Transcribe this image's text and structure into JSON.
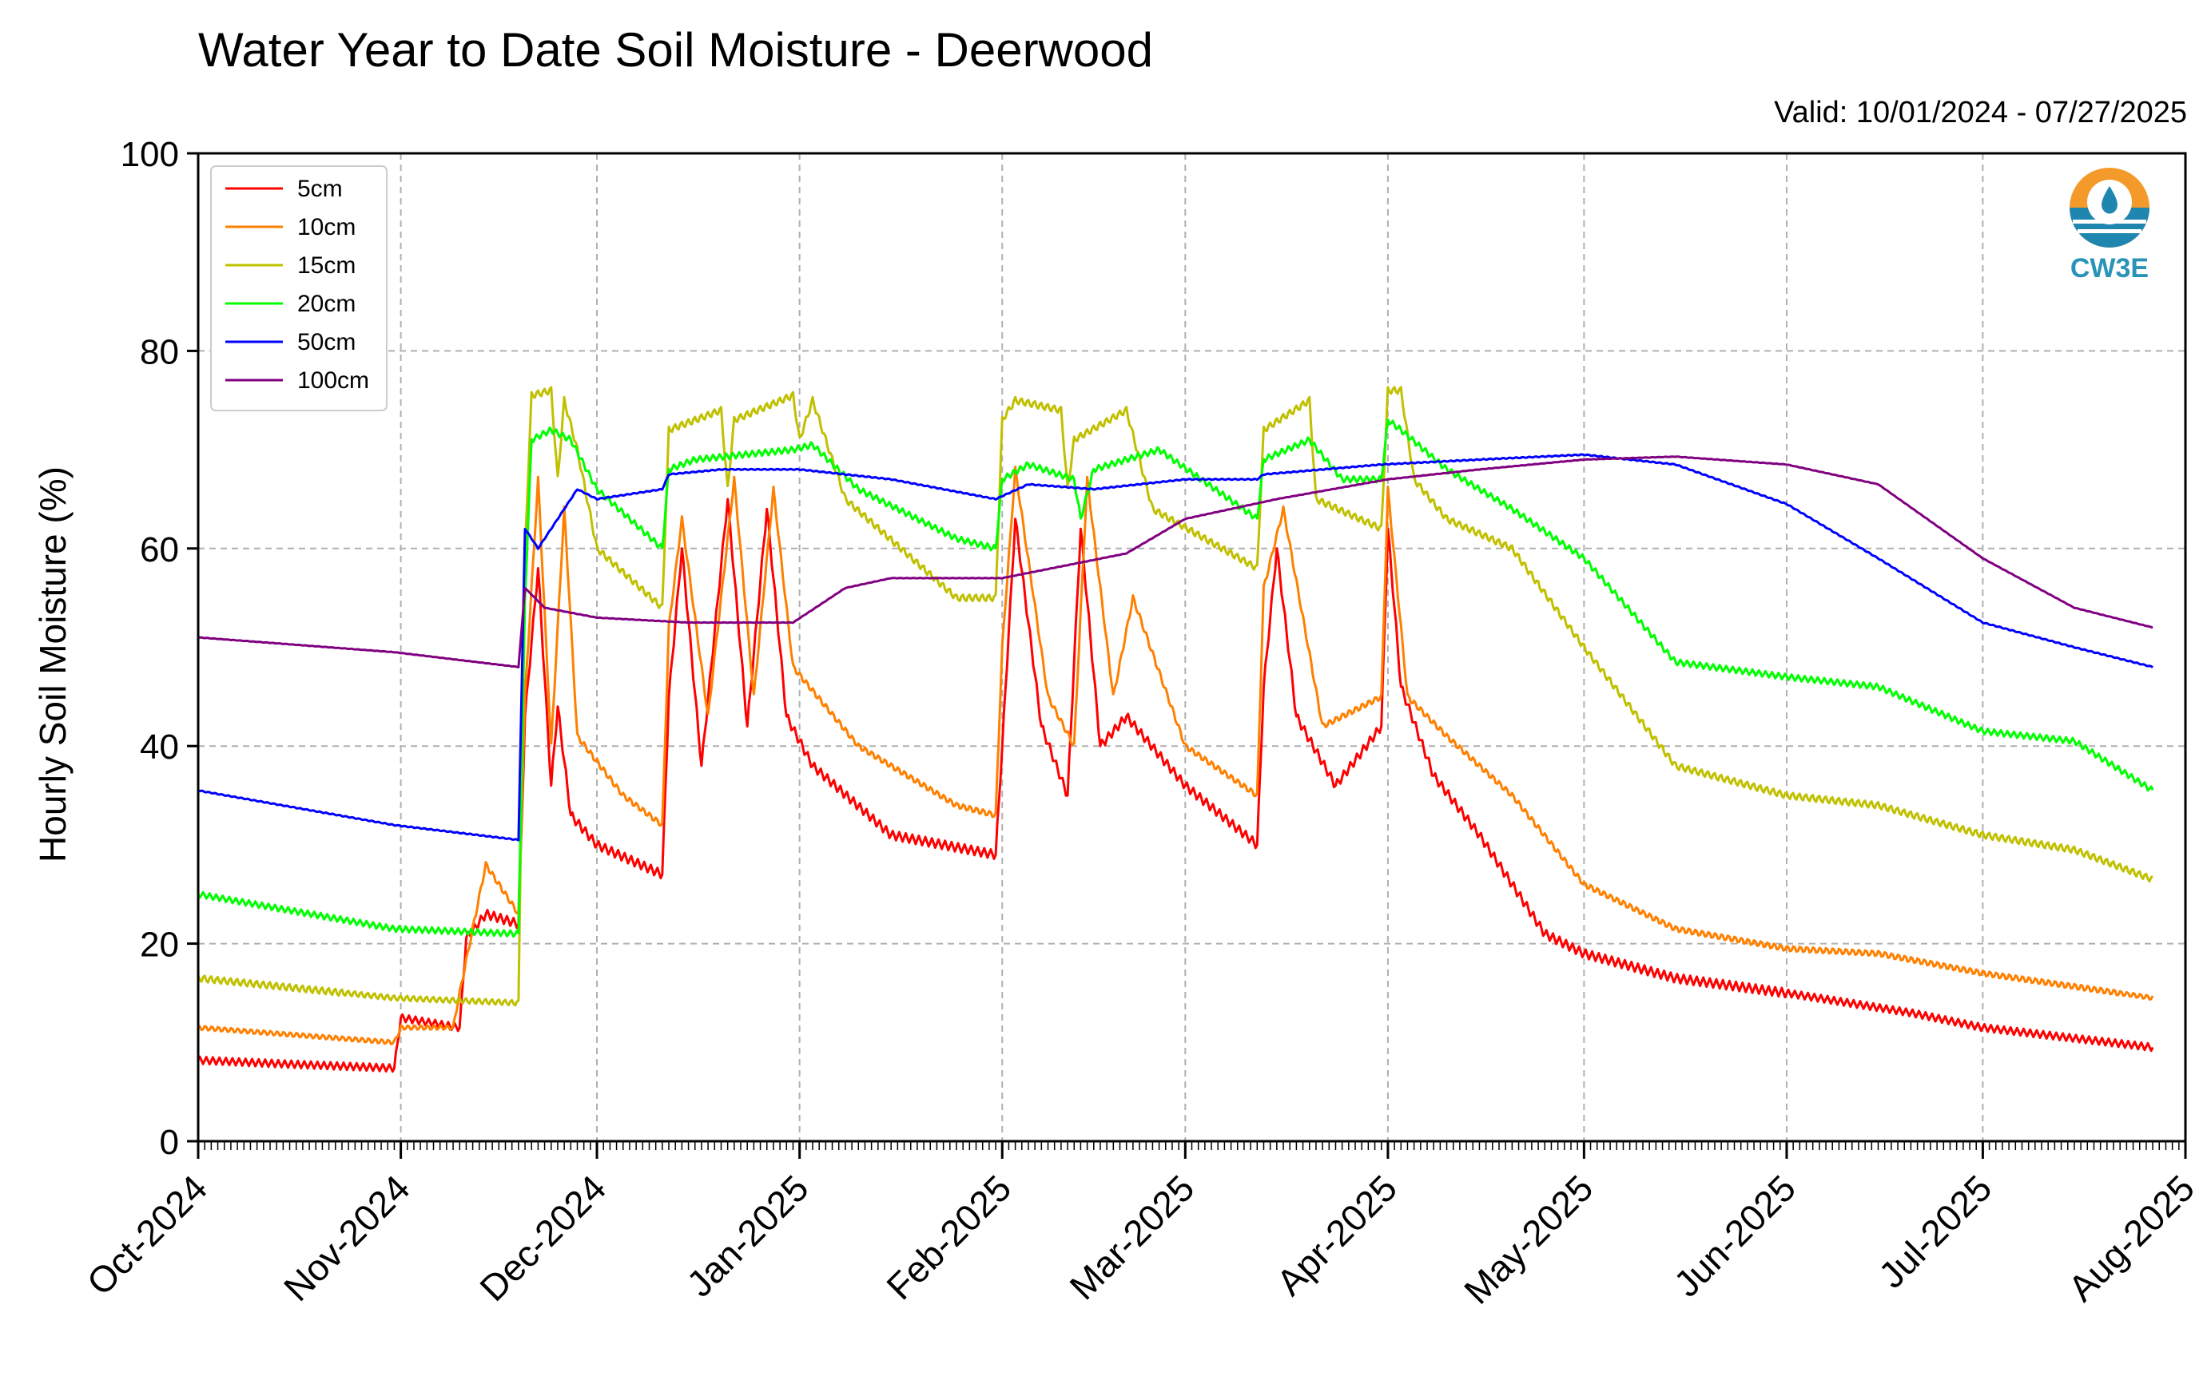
{
  "chart_data": {
    "type": "line",
    "title": "Water Year to Date Soil Moisture - Deerwood",
    "subtitle": "Valid: 10/01/2024 - 07/27/2025",
    "xlabel": "",
    "ylabel": "Hourly Soil Moisture (%)",
    "ylim": [
      0,
      100
    ],
    "yticks": [
      0,
      20,
      40,
      60,
      80,
      100
    ],
    "xlim": [
      "2024-10-01",
      "2025-08-01"
    ],
    "xticks": [
      "Oct-2024",
      "Nov-2024",
      "Dec-2024",
      "Jan-2025",
      "Feb-2025",
      "Mar-2025",
      "Apr-2025",
      "May-2025",
      "Jun-2025",
      "Jul-2025",
      "Aug-2025"
    ],
    "grid": true,
    "legend_position": "upper-left",
    "series": [
      {
        "name": "5cm",
        "color": "#ff0000",
        "points": [
          [
            "2024-10-01",
            8.2
          ],
          [
            "2024-10-15",
            7.8
          ],
          [
            "2024-10-31",
            7.4
          ],
          [
            "2024-11-01",
            12.5
          ],
          [
            "2024-11-10",
            11.5
          ],
          [
            "2024-11-11",
            20.5
          ],
          [
            "2024-11-14",
            23
          ],
          [
            "2024-11-19",
            22
          ],
          [
            "2024-11-20",
            43
          ],
          [
            "2024-11-22",
            58
          ],
          [
            "2024-11-24",
            36
          ],
          [
            "2024-11-25",
            44
          ],
          [
            "2024-11-27",
            33
          ],
          [
            "2024-12-01",
            30
          ],
          [
            "2024-12-11",
            27
          ],
          [
            "2024-12-12",
            45
          ],
          [
            "2024-12-14",
            60
          ],
          [
            "2024-12-17",
            38
          ],
          [
            "2024-12-21",
            65
          ],
          [
            "2024-12-24",
            42
          ],
          [
            "2024-12-27",
            64
          ],
          [
            "2024-12-30",
            43
          ],
          [
            "2025-01-03",
            38
          ],
          [
            "2025-01-15",
            31
          ],
          [
            "2025-01-31",
            29
          ],
          [
            "2025-02-01",
            40
          ],
          [
            "2025-02-03",
            63
          ],
          [
            "2025-02-07",
            42
          ],
          [
            "2025-02-11",
            35
          ],
          [
            "2025-02-13",
            62
          ],
          [
            "2025-02-16",
            40
          ],
          [
            "2025-02-20",
            43
          ],
          [
            "2025-03-01",
            36
          ],
          [
            "2025-03-12",
            30
          ],
          [
            "2025-03-13",
            46
          ],
          [
            "2025-03-15",
            60
          ],
          [
            "2025-03-18",
            43
          ],
          [
            "2025-03-24",
            36
          ],
          [
            "2025-03-31",
            42
          ],
          [
            "2025-04-01",
            62
          ],
          [
            "2025-04-03",
            46
          ],
          [
            "2025-04-08",
            37
          ],
          [
            "2025-04-15",
            31
          ],
          [
            "2025-04-25",
            21
          ],
          [
            "2025-05-01",
            19
          ],
          [
            "2025-05-15",
            16.5
          ],
          [
            "2025-06-01",
            15
          ],
          [
            "2025-06-20",
            13
          ],
          [
            "2025-07-01",
            11.5
          ],
          [
            "2025-07-27",
            9.5
          ]
        ]
      },
      {
        "name": "10cm",
        "color": "#ff8000",
        "points": [
          [
            "2024-10-01",
            11.5
          ],
          [
            "2024-10-31",
            10
          ],
          [
            "2024-11-01",
            11.5
          ],
          [
            "2024-11-09",
            11.5
          ],
          [
            "2024-11-10",
            15
          ],
          [
            "2024-11-14",
            28
          ],
          [
            "2024-11-19",
            23
          ],
          [
            "2024-11-20",
            45
          ],
          [
            "2024-11-22",
            67
          ],
          [
            "2024-11-24",
            40
          ],
          [
            "2024-11-26",
            64
          ],
          [
            "2024-11-28",
            41
          ],
          [
            "2024-12-05",
            35
          ],
          [
            "2024-12-11",
            32
          ],
          [
            "2024-12-12",
            52
          ],
          [
            "2024-12-14",
            63
          ],
          [
            "2024-12-18",
            43
          ],
          [
            "2024-12-22",
            67
          ],
          [
            "2024-12-25",
            45
          ],
          [
            "2024-12-28",
            66
          ],
          [
            "2024-12-31",
            48
          ],
          [
            "2025-01-10",
            40
          ],
          [
            "2025-01-25",
            34
          ],
          [
            "2025-01-31",
            33
          ],
          [
            "2025-02-01",
            50
          ],
          [
            "2025-02-03",
            68
          ],
          [
            "2025-02-08",
            45
          ],
          [
            "2025-02-12",
            40
          ],
          [
            "2025-02-14",
            67
          ],
          [
            "2025-02-18",
            45
          ],
          [
            "2025-02-21",
            55
          ],
          [
            "2025-03-01",
            40
          ],
          [
            "2025-03-12",
            35
          ],
          [
            "2025-03-13",
            56
          ],
          [
            "2025-03-16",
            64
          ],
          [
            "2025-03-22",
            42
          ],
          [
            "2025-03-31",
            45
          ],
          [
            "2025-04-01",
            66
          ],
          [
            "2025-04-04",
            45
          ],
          [
            "2025-04-10",
            41
          ],
          [
            "2025-04-20",
            35
          ],
          [
            "2025-05-01",
            26
          ],
          [
            "2025-05-15",
            21.5
          ],
          [
            "2025-06-01",
            19.5
          ],
          [
            "2025-06-15",
            19
          ],
          [
            "2025-07-01",
            17
          ],
          [
            "2025-07-27",
            14.5
          ]
        ]
      },
      {
        "name": "15cm",
        "color": "#c0c000",
        "points": [
          [
            "2024-10-01",
            16.5
          ],
          [
            "2024-10-31",
            14.5
          ],
          [
            "2024-11-19",
            14
          ],
          [
            "2024-11-20",
            60
          ],
          [
            "2024-11-21",
            75.5
          ],
          [
            "2024-11-24",
            76
          ],
          [
            "2024-11-25",
            67
          ],
          [
            "2024-11-26",
            75
          ],
          [
            "2024-11-28",
            70
          ],
          [
            "2024-12-01",
            60
          ],
          [
            "2024-12-11",
            54
          ],
          [
            "2024-12-12",
            72
          ],
          [
            "2024-12-20",
            74
          ],
          [
            "2024-12-21",
            66
          ],
          [
            "2024-12-22",
            73
          ],
          [
            "2024-12-31",
            75.5
          ],
          [
            "2025-01-01",
            71
          ],
          [
            "2025-01-03",
            75
          ],
          [
            "2025-01-08",
            65
          ],
          [
            "2025-01-25",
            55
          ],
          [
            "2025-01-31",
            55
          ],
          [
            "2025-02-01",
            73
          ],
          [
            "2025-02-03",
            75
          ],
          [
            "2025-02-10",
            74
          ],
          [
            "2025-02-11",
            66
          ],
          [
            "2025-02-12",
            71
          ],
          [
            "2025-02-20",
            74
          ],
          [
            "2025-02-24",
            64
          ],
          [
            "2025-03-12",
            58
          ],
          [
            "2025-03-13",
            72
          ],
          [
            "2025-03-20",
            75
          ],
          [
            "2025-03-21",
            65
          ],
          [
            "2025-03-31",
            62
          ],
          [
            "2025-04-01",
            76
          ],
          [
            "2025-04-03",
            76
          ],
          [
            "2025-04-05",
            67
          ],
          [
            "2025-04-10",
            63
          ],
          [
            "2025-04-20",
            60
          ],
          [
            "2025-05-01",
            50
          ],
          [
            "2025-05-15",
            38
          ],
          [
            "2025-06-01",
            35
          ],
          [
            "2025-06-15",
            34
          ],
          [
            "2025-07-01",
            31
          ],
          [
            "2025-07-15",
            29.5
          ],
          [
            "2025-07-27",
            26.5
          ]
        ]
      },
      {
        "name": "20cm",
        "color": "#00ff00",
        "points": [
          [
            "2024-10-01",
            25
          ],
          [
            "2024-10-31",
            21.5
          ],
          [
            "2024-11-19",
            21
          ],
          [
            "2024-11-20",
            55
          ],
          [
            "2024-11-21",
            71
          ],
          [
            "2024-11-24",
            72
          ],
          [
            "2024-11-27",
            71
          ],
          [
            "2024-12-01",
            66
          ],
          [
            "2024-12-11",
            60
          ],
          [
            "2024-12-12",
            68
          ],
          [
            "2024-12-16",
            69
          ],
          [
            "2024-12-31",
            70
          ],
          [
            "2025-01-03",
            70.5
          ],
          [
            "2025-01-10",
            66
          ],
          [
            "2025-01-25",
            61
          ],
          [
            "2025-01-31",
            60
          ],
          [
            "2025-02-01",
            67
          ],
          [
            "2025-02-05",
            68.5
          ],
          [
            "2025-02-12",
            67
          ],
          [
            "2025-02-13",
            63
          ],
          [
            "2025-02-15",
            68
          ],
          [
            "2025-02-25",
            70
          ],
          [
            "2025-03-12",
            63
          ],
          [
            "2025-03-13",
            69
          ],
          [
            "2025-03-20",
            71
          ],
          [
            "2025-03-25",
            67
          ],
          [
            "2025-03-31",
            67
          ],
          [
            "2025-04-01",
            73
          ],
          [
            "2025-04-03",
            72
          ],
          [
            "2025-04-10",
            68
          ],
          [
            "2025-04-20",
            64
          ],
          [
            "2025-05-01",
            59
          ],
          [
            "2025-05-15",
            48.5
          ],
          [
            "2025-06-01",
            47
          ],
          [
            "2025-06-15",
            46
          ],
          [
            "2025-07-01",
            41.5
          ],
          [
            "2025-07-15",
            40.5
          ],
          [
            "2025-07-27",
            35.5
          ]
        ]
      },
      {
        "name": "50cm",
        "color": "#0000ff",
        "points": [
          [
            "2024-10-01",
            35.5
          ],
          [
            "2024-10-31",
            32
          ],
          [
            "2024-11-19",
            30.5
          ],
          [
            "2024-11-20",
            62
          ],
          [
            "2024-11-22",
            60
          ],
          [
            "2024-11-25",
            63
          ],
          [
            "2024-11-28",
            66
          ],
          [
            "2024-12-01",
            65
          ],
          [
            "2024-12-11",
            66
          ],
          [
            "2024-12-12",
            67.5
          ],
          [
            "2024-12-20",
            68
          ],
          [
            "2025-01-01",
            68
          ],
          [
            "2025-01-15",
            67
          ],
          [
            "2025-01-31",
            65
          ],
          [
            "2025-02-05",
            66.5
          ],
          [
            "2025-02-15",
            66
          ],
          [
            "2025-03-01",
            67
          ],
          [
            "2025-03-12",
            67
          ],
          [
            "2025-03-13",
            67.5
          ],
          [
            "2025-03-31",
            68.5
          ],
          [
            "2025-04-15",
            69
          ],
          [
            "2025-05-01",
            69.5
          ],
          [
            "2025-05-15",
            68.5
          ],
          [
            "2025-06-01",
            64.5
          ],
          [
            "2025-06-15",
            59
          ],
          [
            "2025-07-01",
            52.5
          ],
          [
            "2025-07-15",
            50
          ],
          [
            "2025-07-27",
            48
          ]
        ]
      },
      {
        "name": "100cm",
        "color": "#800080",
        "points": [
          [
            "2024-10-01",
            51
          ],
          [
            "2024-10-31",
            49.5
          ],
          [
            "2024-11-19",
            48
          ],
          [
            "2024-11-20",
            56
          ],
          [
            "2024-11-23",
            54
          ],
          [
            "2024-12-01",
            53
          ],
          [
            "2024-12-15",
            52.5
          ],
          [
            "2024-12-31",
            52.5
          ],
          [
            "2025-01-08",
            56
          ],
          [
            "2025-01-15",
            57
          ],
          [
            "2025-02-01",
            57
          ],
          [
            "2025-02-20",
            59.5
          ],
          [
            "2025-03-01",
            63
          ],
          [
            "2025-03-15",
            65
          ],
          [
            "2025-04-01",
            67
          ],
          [
            "2025-04-15",
            68
          ],
          [
            "2025-05-01",
            69
          ],
          [
            "2025-05-15",
            69.3
          ],
          [
            "2025-06-01",
            68.5
          ],
          [
            "2025-06-15",
            66.5
          ],
          [
            "2025-07-01",
            59
          ],
          [
            "2025-07-15",
            54
          ],
          [
            "2025-07-27",
            52
          ]
        ]
      }
    ]
  },
  "logo": {
    "text": "CW3E",
    "icon": "cw3e-water-drop-logo"
  }
}
